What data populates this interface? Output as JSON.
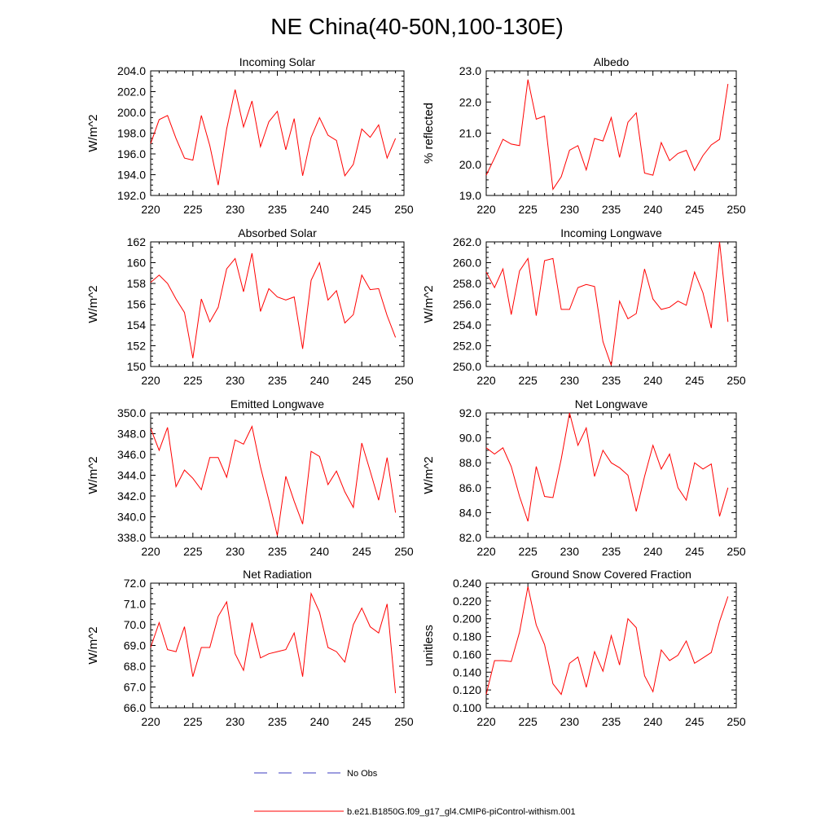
{
  "figure": {
    "title": "NE China(40-50N,100-130E)"
  },
  "legend": {
    "entries": [
      {
        "label": "No Obs",
        "color": "#3b3bbf",
        "dash": true
      },
      {
        "label": "b.e21.B1850G.f09_g17_gl4.CMIP6-piControl-withism.001",
        "color": "#ff0000",
        "dash": false
      }
    ]
  },
  "chart_data": [
    {
      "type": "line",
      "title": "Incoming Solar",
      "ylabel": "W/m^2",
      "xlim": [
        220,
        250
      ],
      "ylim": [
        192,
        204
      ],
      "xticks": [
        220,
        225,
        230,
        235,
        240,
        245,
        250
      ],
      "yticks": [
        "192.0",
        "194.0",
        "196.0",
        "198.0",
        "200.0",
        "202.0",
        "204.0"
      ],
      "series": [
        {
          "color": "#ff0000",
          "x": [
            220,
            221,
            222,
            223,
            224,
            225,
            226,
            227,
            228,
            229,
            230,
            231,
            232,
            233,
            234,
            235,
            236,
            237,
            238,
            239,
            240,
            241,
            242,
            243,
            244,
            245,
            246,
            247,
            248,
            249
          ],
          "values": [
            197.0,
            199.3,
            199.7,
            197.5,
            195.6,
            195.4,
            199.7,
            196.8,
            193.0,
            198.4,
            202.2,
            198.6,
            201.1,
            196.7,
            199.1,
            200.1,
            196.4,
            199.4,
            193.9,
            197.6,
            199.5,
            197.8,
            197.3,
            193.9,
            195.0,
            198.4,
            197.6,
            198.8,
            195.6,
            197.5
          ]
        }
      ]
    },
    {
      "type": "line",
      "title": "Albedo",
      "ylabel": "% reflected",
      "xlim": [
        220,
        250
      ],
      "ylim": [
        19,
        23
      ],
      "xticks": [
        220,
        225,
        230,
        235,
        240,
        245,
        250
      ],
      "yticks": [
        "19.0",
        "20.0",
        "21.0",
        "22.0",
        "23.0"
      ],
      "series": [
        {
          "color": "#ff0000",
          "x": [
            220,
            221,
            222,
            223,
            224,
            225,
            226,
            227,
            228,
            229,
            230,
            231,
            232,
            233,
            234,
            235,
            236,
            237,
            238,
            239,
            240,
            241,
            242,
            243,
            244,
            245,
            246,
            247,
            248,
            249
          ],
          "values": [
            19.65,
            20.2,
            20.8,
            20.65,
            20.6,
            22.72,
            21.45,
            21.55,
            19.2,
            19.6,
            20.45,
            20.6,
            19.82,
            20.83,
            20.75,
            21.5,
            20.22,
            21.35,
            21.65,
            19.72,
            19.65,
            20.7,
            20.12,
            20.35,
            20.45,
            19.8,
            20.28,
            20.62,
            20.8,
            22.58
          ]
        }
      ]
    },
    {
      "type": "line",
      "title": "Absorbed Solar",
      "ylabel": "W/m^2",
      "xlim": [
        220,
        250
      ],
      "ylim": [
        150,
        162
      ],
      "xticks": [
        220,
        225,
        230,
        235,
        240,
        245,
        250
      ],
      "yticks": [
        "150",
        "152",
        "154",
        "156",
        "158",
        "160",
        "162"
      ],
      "series": [
        {
          "color": "#ff0000",
          "x": [
            220,
            221,
            222,
            223,
            224,
            225,
            226,
            227,
            228,
            229,
            230,
            231,
            232,
            233,
            234,
            235,
            236,
            237,
            238,
            239,
            240,
            241,
            242,
            243,
            244,
            245,
            246,
            247,
            248,
            249
          ],
          "values": [
            158.1,
            158.8,
            158.0,
            156.5,
            155.2,
            150.8,
            156.5,
            154.3,
            155.7,
            159.4,
            160.4,
            157.2,
            160.9,
            155.3,
            157.5,
            156.7,
            156.4,
            156.7,
            151.7,
            158.3,
            160.0,
            156.4,
            157.3,
            154.2,
            155.0,
            158.8,
            157.4,
            157.5,
            154.9,
            152.8
          ]
        }
      ]
    },
    {
      "type": "line",
      "title": "Incoming Longwave",
      "ylabel": "W/m^2",
      "xlim": [
        220,
        250
      ],
      "ylim": [
        250,
        262
      ],
      "xticks": [
        220,
        225,
        230,
        235,
        240,
        245,
        250
      ],
      "yticks": [
        "250.0",
        "252.0",
        "254.0",
        "256.0",
        "258.0",
        "260.0",
        "262.0"
      ],
      "series": [
        {
          "color": "#ff0000",
          "x": [
            220,
            221,
            222,
            223,
            224,
            225,
            226,
            227,
            228,
            229,
            230,
            231,
            232,
            233,
            234,
            235,
            236,
            237,
            238,
            239,
            240,
            241,
            242,
            243,
            244,
            245,
            246,
            247,
            248,
            249
          ],
          "values": [
            259.1,
            257.6,
            259.4,
            255.0,
            259.2,
            260.4,
            254.9,
            260.2,
            260.4,
            255.5,
            255.5,
            257.6,
            257.9,
            257.7,
            252.4,
            250.1,
            256.3,
            254.6,
            255.1,
            259.4,
            256.5,
            255.5,
            255.7,
            256.3,
            255.9,
            259.1,
            257.1,
            253.7,
            262.0,
            254.3
          ]
        }
      ]
    },
    {
      "type": "line",
      "title": "Emitted Longwave",
      "ylabel": "W/m^2",
      "xlim": [
        220,
        250
      ],
      "ylim": [
        338,
        350
      ],
      "xticks": [
        220,
        225,
        230,
        235,
        240,
        245,
        250
      ],
      "yticks": [
        "338.0",
        "340.0",
        "342.0",
        "344.0",
        "346.0",
        "348.0",
        "350.0"
      ],
      "series": [
        {
          "color": "#ff0000",
          "x": [
            220,
            221,
            222,
            223,
            224,
            225,
            226,
            227,
            228,
            229,
            230,
            231,
            232,
            233,
            234,
            235,
            236,
            237,
            238,
            239,
            240,
            241,
            242,
            243,
            244,
            245,
            246,
            247,
            248,
            249
          ],
          "values": [
            348.5,
            346.4,
            348.6,
            342.9,
            344.5,
            343.7,
            342.6,
            345.7,
            345.7,
            343.8,
            347.4,
            347.0,
            348.7,
            344.8,
            341.6,
            338.2,
            343.9,
            341.5,
            339.3,
            346.3,
            345.8,
            343.1,
            344.4,
            342.4,
            340.9,
            347.1,
            344.4,
            341.6,
            345.7,
            340.4
          ]
        }
      ]
    },
    {
      "type": "line",
      "title": "Net Longwave",
      "ylabel": "W/m^2",
      "xlim": [
        220,
        250
      ],
      "ylim": [
        82,
        92
      ],
      "xticks": [
        220,
        225,
        230,
        235,
        240,
        245,
        250
      ],
      "yticks": [
        "82.0",
        "84.0",
        "86.0",
        "88.0",
        "90.0",
        "92.0"
      ],
      "series": [
        {
          "color": "#ff0000",
          "x": [
            220,
            221,
            222,
            223,
            224,
            225,
            226,
            227,
            228,
            229,
            230,
            231,
            232,
            233,
            234,
            235,
            236,
            237,
            238,
            239,
            240,
            241,
            242,
            243,
            244,
            245,
            246,
            247,
            248,
            249
          ],
          "values": [
            89.2,
            88.7,
            89.2,
            87.7,
            85.3,
            83.3,
            87.7,
            85.3,
            85.2,
            88.3,
            92.0,
            89.4,
            90.8,
            86.9,
            89.0,
            88.0,
            87.6,
            87.0,
            84.1,
            86.9,
            89.4,
            87.5,
            88.7,
            86.0,
            85.0,
            88.0,
            87.5,
            87.9,
            83.7,
            86.0
          ]
        }
      ]
    },
    {
      "type": "line",
      "title": "Net Radiation",
      "ylabel": "W/m^2",
      "xlim": [
        220,
        250
      ],
      "ylim": [
        66,
        72
      ],
      "xticks": [
        220,
        225,
        230,
        235,
        240,
        245,
        250
      ],
      "yticks": [
        "66.0",
        "67.0",
        "68.0",
        "69.0",
        "70.0",
        "71.0",
        "72.0"
      ],
      "series": [
        {
          "color": "#ff0000",
          "x": [
            220,
            221,
            222,
            223,
            224,
            225,
            226,
            227,
            228,
            229,
            230,
            231,
            232,
            233,
            234,
            235,
            236,
            237,
            238,
            239,
            240,
            241,
            242,
            243,
            244,
            245,
            246,
            247,
            248,
            249
          ],
          "values": [
            68.9,
            70.1,
            68.8,
            68.7,
            69.9,
            67.5,
            68.9,
            68.9,
            70.4,
            71.1,
            68.6,
            67.8,
            70.1,
            68.4,
            68.6,
            68.7,
            68.8,
            69.6,
            67.5,
            71.5,
            70.6,
            68.9,
            68.7,
            68.2,
            70.0,
            70.8,
            69.9,
            69.6,
            71.0,
            66.7
          ]
        }
      ]
    },
    {
      "type": "line",
      "title": "Ground Snow Covered Fraction",
      "ylabel": "unitless",
      "xlim": [
        220,
        250
      ],
      "ylim": [
        0.1,
        0.24
      ],
      "xticks": [
        220,
        225,
        230,
        235,
        240,
        245,
        250
      ],
      "yticks": [
        "0.100",
        "0.120",
        "0.140",
        "0.160",
        "0.180",
        "0.200",
        "0.220",
        "0.240"
      ],
      "series": [
        {
          "color": "#ff0000",
          "x": [
            220,
            221,
            222,
            223,
            224,
            225,
            226,
            227,
            228,
            229,
            230,
            231,
            232,
            233,
            234,
            235,
            236,
            237,
            238,
            239,
            240,
            241,
            242,
            243,
            244,
            245,
            246,
            247,
            248,
            249
          ],
          "values": [
            0.115,
            0.153,
            0.153,
            0.152,
            0.185,
            0.236,
            0.193,
            0.171,
            0.127,
            0.115,
            0.15,
            0.157,
            0.123,
            0.163,
            0.141,
            0.181,
            0.148,
            0.2,
            0.19,
            0.136,
            0.118,
            0.165,
            0.153,
            0.159,
            0.175,
            0.15,
            0.156,
            0.162,
            0.197,
            0.225
          ]
        }
      ]
    }
  ]
}
